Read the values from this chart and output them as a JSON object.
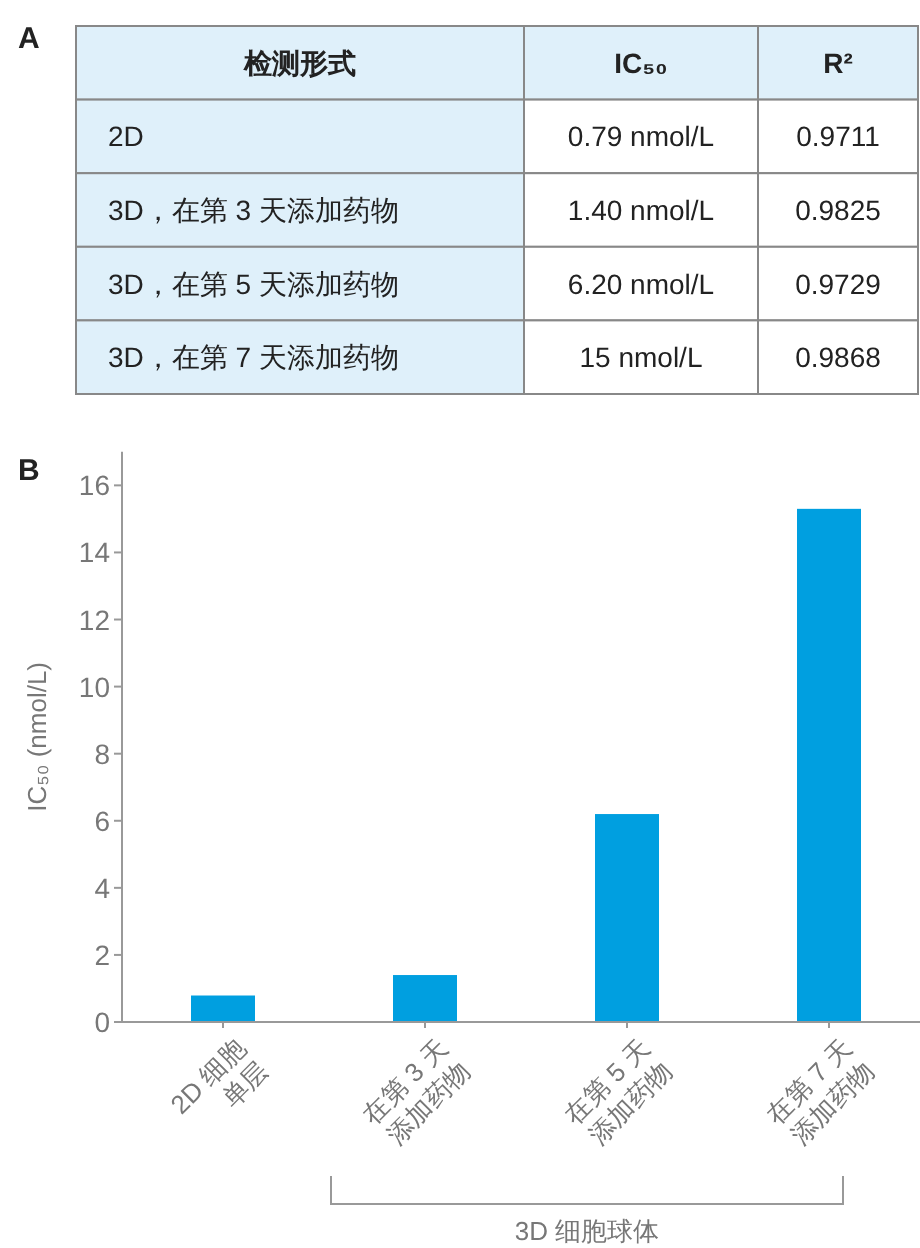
{
  "chart_data": [
    {
      "type": "other",
      "annotations": [
        "A"
      ],
      "categories": [
        "检测形式",
        "IC₅₀",
        "R²"
      ],
      "cell_labels": [
        [
          "2D",
          "0.79 nmol/L",
          "0.9711"
        ],
        [
          "3D，在第 3 天添加药物",
          "1.40 nmol/L",
          "0.9825"
        ],
        [
          "3D，在第 5 天添加药物",
          "6.20 nmol/L",
          "0.9729"
        ],
        [
          "3D，在第 7 天添加药物",
          "15 nmol/L",
          "0.9868"
        ]
      ]
    },
    {
      "type": "bar",
      "annotations": [
        "B",
        "3D 细胞球体"
      ],
      "ylabel": "IC₅₀ (nmol/L)",
      "categories": [
        "2D 细胞\n单层",
        "在第 3 天\n添加药物",
        "在第 5 天\n添加药物",
        "在第 7 天\n添加药物"
      ],
      "values": [
        0.79,
        1.4,
        6.2,
        15.3
      ],
      "color": "#009fe0",
      "ylim": [
        0,
        17
      ],
      "yticks": [
        0,
        2,
        4,
        6,
        8,
        10,
        12,
        14,
        16
      ]
    }
  ]
}
